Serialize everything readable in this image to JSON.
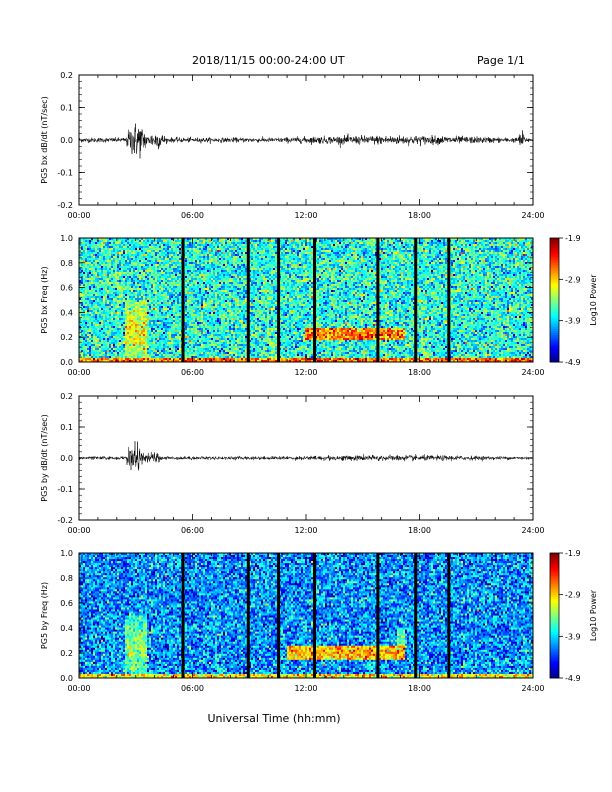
{
  "header": {
    "title": "2018/11/15  00:00-24:00 UT",
    "page": "Page 1/1"
  },
  "xlabel": "Universal Time (hh:mm)",
  "chart_data": [
    {
      "type": "line",
      "name": "bx-waveform",
      "ylabel": "PG5 bx dB/dt (nT/sec)",
      "xlim": [
        0,
        24
      ],
      "ylim": [
        -0.2,
        0.2
      ],
      "xticks": [
        "00:00",
        "06:00",
        "12:00",
        "18:00",
        "24:00"
      ],
      "yticks": [
        "0.2",
        "0.1",
        "0.0",
        "-0.1",
        "-0.2"
      ],
      "x_unit": "hours UT",
      "baseline": 0.0,
      "noise_amplitude": 0.008,
      "bursts": [
        {
          "start": 2.5,
          "end": 3.6,
          "amplitude": 0.06
        },
        {
          "start": 3.6,
          "end": 4.6,
          "amplitude": 0.03
        },
        {
          "start": 9.0,
          "end": 24.0,
          "amplitude": 0.015
        },
        {
          "start": 23.2,
          "end": 23.6,
          "amplitude": 0.03
        }
      ]
    },
    {
      "type": "heatmap",
      "name": "bx-spectrogram",
      "ylabel": "PG5 bx Freq (Hz)",
      "xlim": [
        0,
        24
      ],
      "ylim": [
        0,
        1.0
      ],
      "xticks": [
        "00:00",
        "06:00",
        "12:00",
        "18:00",
        "24:00"
      ],
      "yticks": [
        "1.0",
        "0.8",
        "0.6",
        "0.4",
        "0.2",
        "0.0"
      ],
      "colorbar": {
        "label": "Log10 Power",
        "ticks": [
          "-1.9",
          "-2.9",
          "-3.9",
          "-4.9"
        ],
        "range": [
          -4.9,
          -1.9
        ]
      },
      "background_level": -3.7,
      "low_freq_band": {
        "fmax": 0.03,
        "level": -2.6
      },
      "data_gaps_hours": [
        5.5,
        8.95,
        10.55,
        12.45,
        15.8,
        17.8,
        19.55
      ],
      "features": [
        {
          "t_start": 12.0,
          "t_end": 17.2,
          "f_center": 0.22,
          "f_width": 0.05,
          "level": -2.6
        },
        {
          "t_start": 2.4,
          "t_end": 3.6,
          "f_center": 0.25,
          "f_width": 0.25,
          "level": -3.0
        },
        {
          "t_start": 21.4,
          "t_end": 22.0,
          "f_center": 0.5,
          "f_width": 0.6,
          "level": -4.4
        }
      ]
    },
    {
      "type": "line",
      "name": "by-waveform",
      "ylabel": "PG5 by dB/dt (nT/sec)",
      "xlim": [
        0,
        24
      ],
      "ylim": [
        -0.2,
        0.2
      ],
      "xticks": [
        "00:00",
        "06:00",
        "12:00",
        "18:00",
        "24:00"
      ],
      "yticks": [
        "0.2",
        "0.1",
        "0.0",
        "-0.1",
        "-0.2"
      ],
      "x_unit": "hours UT",
      "baseline": 0.0,
      "noise_amplitude": 0.006,
      "bursts": [
        {
          "start": 2.5,
          "end": 3.4,
          "amplitude": 0.05
        },
        {
          "start": 3.4,
          "end": 4.4,
          "amplitude": 0.02
        },
        {
          "start": 9.0,
          "end": 24.0,
          "amplitude": 0.01
        }
      ]
    },
    {
      "type": "heatmap",
      "name": "by-spectrogram",
      "ylabel": "PG5 by Freq (Hz)",
      "xlim": [
        0,
        24
      ],
      "ylim": [
        0,
        1.0
      ],
      "xticks": [
        "00:00",
        "06:00",
        "12:00",
        "18:00",
        "24:00"
      ],
      "yticks": [
        "1.0",
        "0.8",
        "0.6",
        "0.4",
        "0.2",
        "0.0"
      ],
      "colorbar": {
        "label": "Log10 Power",
        "ticks": [
          "-1.9",
          "-2.9",
          "-3.9",
          "-4.9"
        ],
        "range": [
          -4.9,
          -1.9
        ]
      },
      "background_level": -4.1,
      "low_freq_band": {
        "fmax": 0.03,
        "level": -3.0
      },
      "data_gaps_hours": [
        5.5,
        8.95,
        10.55,
        12.45,
        15.8,
        17.8,
        19.55
      ],
      "features": [
        {
          "t_start": 11.0,
          "t_end": 17.2,
          "f_center": 0.2,
          "f_width": 0.05,
          "level": -2.8
        },
        {
          "t_start": 2.4,
          "t_end": 3.6,
          "f_center": 0.25,
          "f_width": 0.25,
          "level": -3.3
        },
        {
          "t_start": 16.8,
          "t_end": 17.2,
          "f_center": 0.3,
          "f_width": 0.1,
          "level": -3.5
        }
      ]
    }
  ]
}
